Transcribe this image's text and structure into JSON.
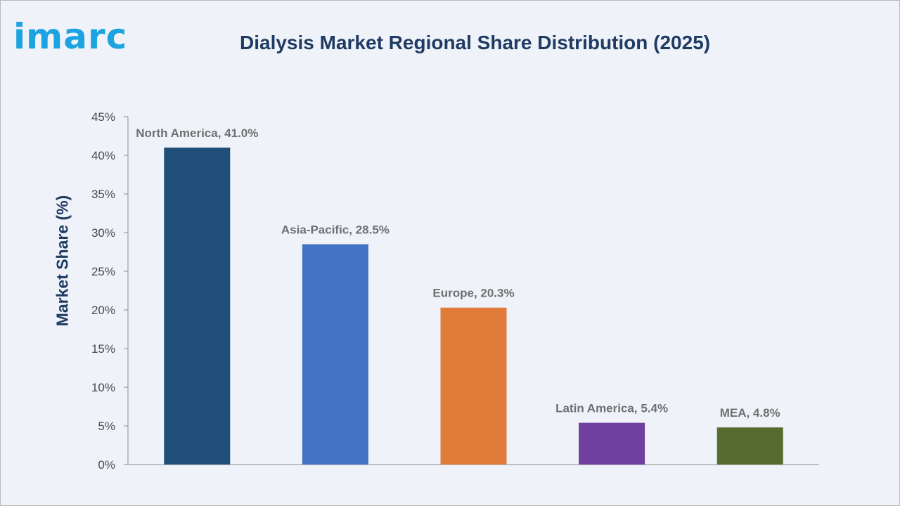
{
  "logo": {
    "text": "imarc",
    "color": "#1da3e0"
  },
  "title": "Dialysis Market Regional Share Distribution (2025)",
  "chart_data": {
    "type": "bar",
    "title": "Dialysis Market Regional Share Distribution (2025)",
    "xlabel": "",
    "ylabel": "Market Share (%)",
    "ylim": [
      0,
      45
    ],
    "yticks": [
      0,
      5,
      10,
      15,
      20,
      25,
      30,
      35,
      40,
      45
    ],
    "ytick_labels": [
      "0%",
      "5%",
      "10%",
      "15%",
      "20%",
      "25%",
      "30%",
      "35%",
      "40%",
      "45%"
    ],
    "grid": false,
    "legend": "none",
    "categories": [
      "North America",
      "Asia-Pacific",
      "Europe",
      "Latin America",
      "MEA"
    ],
    "values": [
      41.0,
      28.5,
      20.3,
      5.4,
      4.8
    ],
    "data_labels": [
      "North America, 41.0%",
      "Asia-Pacific, 28.5%",
      "Europe, 20.3%",
      "Latin America, 5.4%",
      "MEA, 4.8%"
    ],
    "colors": [
      "#1f4e79",
      "#4472c4",
      "#e07b39",
      "#7040a0",
      "#556b2f"
    ]
  }
}
